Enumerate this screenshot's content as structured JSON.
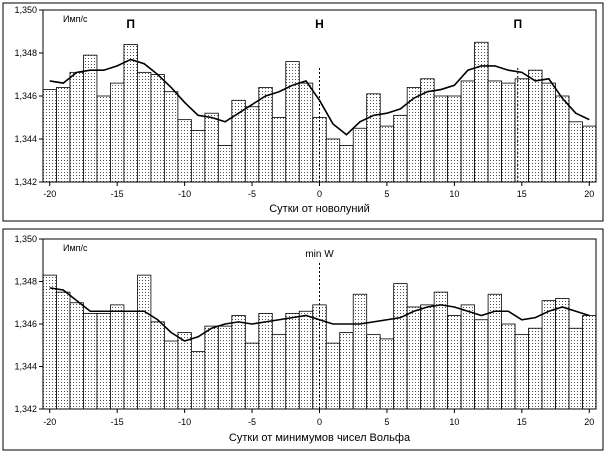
{
  "chart_data": [
    {
      "type": "bar",
      "unit_label": "Имп/с",
      "xlabel": "Сутки от новолуний",
      "x": [
        -20,
        -19,
        -18,
        -17,
        -16,
        -15,
        -14,
        -13,
        -12,
        -11,
        -10,
        -9,
        -8,
        -7,
        -6,
        -5,
        -4,
        -3,
        -2,
        -1,
        0,
        1,
        2,
        3,
        4,
        5,
        6,
        7,
        8,
        9,
        10,
        11,
        12,
        13,
        14,
        15,
        16,
        17,
        18,
        19,
        20
      ],
      "values": [
        1.3463,
        1.3464,
        1.3471,
        1.3479,
        1.346,
        1.3466,
        1.3484,
        1.3471,
        1.347,
        1.3462,
        1.3449,
        1.3444,
        1.3452,
        1.3437,
        1.3458,
        1.3455,
        1.3464,
        1.345,
        1.3476,
        1.3466,
        1.345,
        1.344,
        1.3437,
        1.3445,
        1.3461,
        1.3446,
        1.3451,
        1.3464,
        1.3468,
        1.346,
        1.346,
        1.3467,
        1.3485,
        1.3467,
        1.3466,
        1.3468,
        1.3472,
        1.3466,
        1.346,
        1.3448,
        1.3446
      ],
      "line_values": [
        1.3467,
        1.3466,
        1.3471,
        1.3472,
        1.3472,
        1.3474,
        1.3477,
        1.3475,
        1.347,
        1.3464,
        1.3457,
        1.3451,
        1.345,
        1.3448,
        1.3452,
        1.3456,
        1.346,
        1.3462,
        1.3465,
        1.3467,
        1.3458,
        1.3447,
        1.3442,
        1.3448,
        1.3451,
        1.3452,
        1.3454,
        1.3459,
        1.3462,
        1.3463,
        1.3465,
        1.3472,
        1.3474,
        1.3474,
        1.3472,
        1.3471,
        1.3467,
        1.3468,
        1.3459,
        1.3452,
        1.3449
      ],
      "ylim": [
        1.342,
        1.35
      ],
      "yticks": [
        "1,342",
        "1,344",
        "1,346",
        "1,348",
        "1,350"
      ],
      "yticks_values": [
        1.342,
        1.344,
        1.346,
        1.348,
        1.35
      ],
      "xticks": [
        "-20",
        "-15",
        "-10",
        "-5",
        "0",
        "5",
        "10",
        "15",
        "20"
      ],
      "xticks_values": [
        -20,
        -15,
        -10,
        -5,
        0,
        5,
        10,
        15,
        20
      ],
      "markers": [
        {
          "x": 0
        },
        {
          "x": 14.7
        }
      ],
      "annotations": [
        {
          "text": "П",
          "x": -14,
          "bold": true
        },
        {
          "text": "Н",
          "x": 0,
          "bold": true
        },
        {
          "text": "П",
          "x": 14.7,
          "bold": true
        }
      ]
    },
    {
      "type": "bar",
      "unit_label": "Имп/с",
      "xlabel": "Сутки от минимумов чисел Вольфа",
      "x": [
        -20,
        -19,
        -18,
        -17,
        -16,
        -15,
        -14,
        -13,
        -12,
        -11,
        -10,
        -9,
        -8,
        -7,
        -6,
        -5,
        -4,
        -3,
        -2,
        -1,
        0,
        1,
        2,
        3,
        4,
        5,
        6,
        7,
        8,
        9,
        10,
        11,
        12,
        13,
        14,
        15,
        16,
        17,
        18,
        19,
        20
      ],
      "values": [
        1.3483,
        1.3475,
        1.347,
        1.3465,
        1.3465,
        1.3469,
        1.3466,
        1.3483,
        1.3461,
        1.3452,
        1.3456,
        1.3447,
        1.3459,
        1.3459,
        1.3464,
        1.3451,
        1.3465,
        1.3455,
        1.3465,
        1.3466,
        1.3469,
        1.3451,
        1.3456,
        1.3474,
        1.3455,
        1.3453,
        1.3479,
        1.3468,
        1.3469,
        1.3475,
        1.3464,
        1.3469,
        1.3462,
        1.3474,
        1.346,
        1.3455,
        1.3458,
        1.3471,
        1.3472,
        1.3458,
        1.3464
      ],
      "line_values": [
        1.3477,
        1.3476,
        1.3471,
        1.3466,
        1.3466,
        1.3466,
        1.3466,
        1.3466,
        1.3462,
        1.3456,
        1.3452,
        1.3454,
        1.3458,
        1.346,
        1.3461,
        1.346,
        1.3461,
        1.3462,
        1.3463,
        1.3464,
        1.3462,
        1.346,
        1.346,
        1.346,
        1.3461,
        1.3462,
        1.3463,
        1.3466,
        1.3468,
        1.3469,
        1.3468,
        1.3466,
        1.3464,
        1.3466,
        1.3466,
        1.3462,
        1.3463,
        1.3466,
        1.3468,
        1.3466,
        1.3464
      ],
      "ylim": [
        1.342,
        1.35
      ],
      "yticks": [
        "1,342",
        "1,344",
        "1,346",
        "1,348",
        "1,350"
      ],
      "yticks_values": [
        1.342,
        1.344,
        1.346,
        1.348,
        1.35
      ],
      "xticks": [
        "-20",
        "-15",
        "-10",
        "-5",
        "0",
        "5",
        "10",
        "15",
        "20"
      ],
      "xticks_values": [
        -20,
        -15,
        -10,
        -5,
        0,
        5,
        10,
        15,
        20
      ],
      "markers": [
        {
          "x": 0
        }
      ],
      "annotations": [
        {
          "text": "min W",
          "x": 0,
          "bold": false
        }
      ]
    }
  ]
}
